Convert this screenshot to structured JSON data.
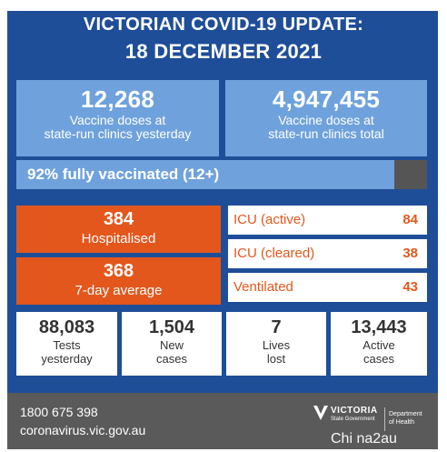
{
  "header": {
    "title": "VICTORIAN COVID-19 UPDATE:",
    "date": "18 DECEMBER 2021"
  },
  "vaccine_cards": [
    {
      "value": "12,268",
      "line1": "Vaccine doses at",
      "line2": "state-run clinics yesterday"
    },
    {
      "value": "4,947,455",
      "line1": "Vaccine doses at",
      "line2": "state-run clinics total"
    }
  ],
  "vaccination_bar": {
    "label": "92% fully vaccinated (12+)",
    "percent": 92
  },
  "hospital_cards": [
    {
      "value": "384",
      "label": "Hospitalised"
    },
    {
      "value": "368",
      "label": "7-day average"
    }
  ],
  "hospital_stats": [
    {
      "label": "ICU (active)",
      "value": "84"
    },
    {
      "label": "ICU (cleared)",
      "value": "38"
    },
    {
      "label": "Ventilated",
      "value": "43"
    }
  ],
  "summary_cards": [
    {
      "value": "88,083",
      "line1": "Tests",
      "line2": "yesterday"
    },
    {
      "value": "1,504",
      "line1": "New",
      "line2": "cases"
    },
    {
      "value": "7",
      "line1": "Lives",
      "line2": "lost"
    },
    {
      "value": "13,443",
      "line1": "Active",
      "line2": "cases"
    }
  ],
  "footer": {
    "phone": "1800 675 398",
    "website": "coronavirus.vic.gov.au",
    "logo_word": "VICTORIA",
    "logo_state": "State Government",
    "department_line1": "Department",
    "department_line2": "of Health"
  },
  "watermark": "Chi na2au",
  "colors": {
    "background_blue": "#1f4e99",
    "light_blue": "#6fa2dc",
    "orange": "#e3571d",
    "footer_grey": "#5a5a5a",
    "bar_remainder": "#555555"
  }
}
